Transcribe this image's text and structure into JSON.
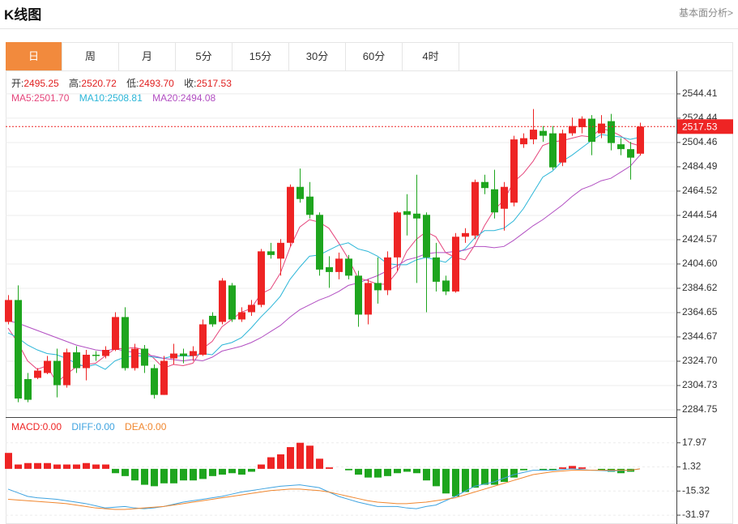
{
  "header": {
    "title": "K线图",
    "link": "基本面分析>"
  },
  "tabs": [
    "日",
    "周",
    "月",
    "5分",
    "15分",
    "30分",
    "60分",
    "4时"
  ],
  "chart_data": [
    {
      "type": "candlestick",
      "up_color": "#ee2424",
      "down_color": "#1ea51e",
      "ylim": [
        2278.76,
        2563.0
      ],
      "yticks": [
        2284.75,
        2304.73,
        {
          "value": 2324.7,
          "label": "2324.70"
        },
        2344.67,
        2364.65,
        2384.62,
        {
          "value": 2404.6,
          "label": "2404.60"
        },
        2424.57,
        2444.54,
        2464.52,
        2484.49,
        2504.46,
        2524.44,
        2544.41
      ],
      "grid": true,
      "open": [
        2357,
        2375,
        2310,
        2311,
        2315,
        2325,
        2305,
        2332,
        2319,
        2330,
        2329,
        2334,
        2361,
        2319,
        2335,
        2319,
        2297,
        2327,
        2331,
        2329,
        2330,
        2362,
        2357,
        2387,
        2359,
        2365,
        2371,
        2415,
        2409,
        2422,
        2468,
        2460,
        2445,
        2402,
        2398,
        2409,
        2395,
        2363,
        2389,
        2383,
        2410,
        2448,
        2446,
        2445,
        2410,
        2391,
        2382,
        2427,
        2428,
        2472,
        2466,
        2450,
        2455,
        2503,
        2507,
        2514,
        2512,
        2488,
        2512,
        2517,
        2524,
        2512,
        2522,
        2503,
        2499,
        2495.25
      ],
      "high": [
        2379,
        2387,
        2315,
        2319,
        2329,
        2335,
        2335,
        2337,
        2334,
        2333,
        2337,
        2365,
        2369,
        2339,
        2338,
        2322,
        2329,
        2339,
        2335,
        2337,
        2359,
        2365,
        2393,
        2389,
        2369,
        2375,
        2417,
        2422,
        2425,
        2470,
        2483,
        2472,
        2447,
        2411,
        2414,
        2412,
        2399,
        2392,
        2410,
        2415,
        2448,
        2462,
        2478,
        2447,
        2422,
        2395,
        2430,
        2434,
        2474,
        2478,
        2482,
        2472,
        2510,
        2512,
        2532,
        2518,
        2518,
        2515,
        2525,
        2526,
        2527,
        2527,
        2528,
        2508,
        2505,
        2520.72
      ],
      "low": [
        2355,
        2291,
        2291,
        2310,
        2314,
        2295,
        2303,
        2315,
        2309,
        2325,
        2327,
        2333,
        2317,
        2317,
        2315,
        2294,
        2297,
        2322,
        2323,
        2325,
        2329,
        2353,
        2355,
        2357,
        2357,
        2362,
        2369,
        2409,
        2395,
        2419,
        2455,
        2442,
        2395,
        2385,
        2392,
        2392,
        2353,
        2355,
        2372,
        2379,
        2399,
        2428,
        2389,
        2365,
        2382,
        2379,
        2381,
        2422,
        2425,
        2462,
        2442,
        2432,
        2452,
        2500,
        2503,
        2505,
        2482,
        2485,
        2510,
        2512,
        2494,
        2508,
        2498,
        2494,
        2474,
        2493.7
      ],
      "close": [
        2375,
        2294,
        2293,
        2317,
        2325,
        2305,
        2332,
        2319,
        2330,
        2329,
        2334,
        2361,
        2319,
        2335,
        2321,
        2297,
        2325,
        2331,
        2329,
        2333,
        2355,
        2355,
        2391,
        2359,
        2365,
        2371,
        2415,
        2412,
        2422,
        2468,
        2458,
        2445,
        2400,
        2398,
        2409,
        2395,
        2363,
        2389,
        2383,
        2410,
        2447,
        2445,
        2442,
        2410,
        2390,
        2382,
        2427,
        2430,
        2472,
        2467,
        2447,
        2468,
        2507,
        2508,
        2515,
        2510,
        2484,
        2512,
        2518,
        2524,
        2505,
        2520,
        2504,
        2499,
        2492,
        2517.53
      ],
      "series": [
        {
          "name": "MA5",
          "color": "#e5467c",
          "values": [
            2352,
            2340,
            2325,
            2318,
            2321,
            2307,
            2314,
            2320,
            2322,
            2323,
            2329,
            2335,
            2335,
            2336,
            2334,
            2327,
            2319,
            2322,
            2321,
            2323,
            2335,
            2341,
            2353,
            2359,
            2365,
            2368,
            2380,
            2384,
            2397,
            2418,
            2435,
            2441,
            2439,
            2434,
            2422,
            2409,
            2393,
            2391,
            2388,
            2388,
            2398,
            2415,
            2425,
            2431,
            2427,
            2414,
            2410,
            2408,
            2420,
            2436,
            2449,
            2457,
            2472,
            2479,
            2489,
            2502,
            2505,
            2506,
            2508,
            2510,
            2509,
            2516,
            2514,
            2510,
            2504,
            2501.7
          ]
        },
        {
          "name": "MA10",
          "color": "#2cb6d8",
          "values": [
            2348,
            2344,
            2338,
            2334,
            2331,
            2330,
            2327,
            2323,
            2320,
            2322,
            2318,
            2325,
            2328,
            2329,
            2329,
            2328,
            2327,
            2329,
            2329,
            2329,
            2331,
            2330,
            2338,
            2340,
            2344,
            2352,
            2361,
            2369,
            2378,
            2392,
            2402,
            2411,
            2412,
            2416,
            2420,
            2422,
            2417,
            2415,
            2411,
            2405,
            2404,
            2404,
            2408,
            2410,
            2408,
            2406,
            2413,
            2417,
            2426,
            2432,
            2432,
            2434,
            2440,
            2450,
            2463,
            2476,
            2481,
            2489,
            2494,
            2500,
            2506,
            2511,
            2510,
            2509,
            2507,
            2508.81
          ]
        },
        {
          "name": "MA20",
          "color": "#b24fc2",
          "values": [
            2358,
            2356,
            2353,
            2350,
            2347,
            2344,
            2341,
            2338,
            2336,
            2334,
            2333,
            2335,
            2333,
            2332,
            2330,
            2329,
            2327,
            2326,
            2325,
            2326,
            2325,
            2328,
            2333,
            2335,
            2337,
            2340,
            2344,
            2349,
            2354,
            2361,
            2367,
            2371,
            2375,
            2378,
            2382,
            2387,
            2389,
            2392,
            2395,
            2399,
            2403,
            2408,
            2410,
            2413,
            2414,
            2414,
            2415,
            2416,
            2419,
            2419,
            2418,
            2419,
            2424,
            2430,
            2436,
            2441,
            2447,
            2453,
            2460,
            2466,
            2469,
            2473,
            2475,
            2480,
            2485,
            2494.08
          ]
        }
      ],
      "readout": [
        {
          "name": "开:",
          "value": 2495.25
        },
        {
          "name": "高:",
          "value": 2520.72
        },
        {
          "name": "低:",
          "value": 2493.7,
          "label": "2493.70"
        },
        {
          "name": "收:",
          "value": 2517.53
        }
      ],
      "legend": [
        {
          "name": "MA5:",
          "value": 2501.7,
          "label": "2501.70",
          "color": "#e5467c"
        },
        {
          "name": "MA10:",
          "value": 2508.81,
          "label": "2508.81",
          "color": "#2cb6d8"
        },
        {
          "name": "MA20:",
          "value": 2494.08,
          "label": "2494.08",
          "color": "#b24fc2"
        }
      ]
    },
    {
      "type": "macd",
      "up_color": "#ee2424",
      "down_color": "#1ea51e",
      "ylim": [
        -38.08,
        35.17
      ],
      "yticks": [
        17.97,
        1.32,
        -15.32,
        -31.97
      ],
      "grid": true,
      "series": [
        {
          "name": "MACD",
          "color": "#ee2424",
          "values": [
            11,
            3,
            4,
            4,
            4,
            3,
            3,
            3,
            4,
            3,
            3,
            -3,
            -5,
            -8,
            -11,
            -12,
            -10,
            -10,
            -8,
            -8,
            -7,
            -5,
            -4,
            -3,
            -4,
            -2,
            3,
            8,
            10,
            15,
            18,
            16,
            7,
            1,
            0,
            -1,
            -4,
            -6,
            -6,
            -5,
            -3,
            -2,
            -3,
            -8,
            -12,
            -17,
            -19,
            -16,
            -13,
            -11,
            -11,
            -9,
            -6,
            -1,
            0,
            -1,
            -1,
            1,
            2,
            1,
            0,
            -1,
            -2,
            -3,
            -2,
            0
          ]
        },
        {
          "name": "DIFF",
          "color": "#3fa3e0",
          "values": [
            -14,
            -16.5,
            -19,
            -20,
            -20.5,
            -21,
            -22,
            -23,
            -24,
            -25.5,
            -27,
            -26.5,
            -26,
            -27,
            -27.5,
            -27,
            -26,
            -24.5,
            -23,
            -22,
            -21,
            -20,
            -19,
            -17.5,
            -16,
            -15,
            -14,
            -13,
            -12,
            -11.5,
            -11,
            -12,
            -13,
            -16,
            -19,
            -21,
            -23,
            -24.5,
            -26,
            -26,
            -26,
            -27,
            -27.5,
            -26,
            -25,
            -22,
            -19,
            -15.5,
            -12,
            -10.5,
            -9,
            -6.5,
            -4,
            -2.5,
            -1,
            -1,
            -1,
            -0.5,
            0,
            -0.5,
            -1,
            -1.2,
            -1.5,
            -1.2,
            -1,
            0
          ]
        },
        {
          "name": "DEA",
          "color": "#f0862e",
          "values": [
            -21,
            -21.5,
            -22,
            -22.5,
            -23,
            -23.5,
            -24,
            -25,
            -26,
            -27,
            -27.5,
            -28,
            -28,
            -27.5,
            -27,
            -26.5,
            -26,
            -25,
            -24,
            -23,
            -22,
            -21,
            -20,
            -19,
            -18,
            -17,
            -16,
            -15,
            -14.5,
            -14,
            -14,
            -14.5,
            -15,
            -16,
            -17.5,
            -19,
            -20.5,
            -22,
            -23,
            -23.5,
            -24,
            -24,
            -23.5,
            -23,
            -22,
            -21,
            -20,
            -18,
            -16,
            -14,
            -12,
            -10,
            -8,
            -6,
            -4,
            -3,
            -2,
            -1.5,
            -1,
            -1,
            -1,
            -1,
            -1,
            -1,
            -1,
            0
          ]
        }
      ],
      "legend": [
        {
          "name": "MACD:",
          "value": 0,
          "label": "0.00",
          "color": "#ee2424"
        },
        {
          "name": "DIFF:",
          "value": 0,
          "label": "0.00",
          "color": "#3fa3e0"
        },
        {
          "name": "DEA:",
          "value": 0,
          "label": "0.00",
          "color": "#f0862e"
        }
      ]
    }
  ]
}
